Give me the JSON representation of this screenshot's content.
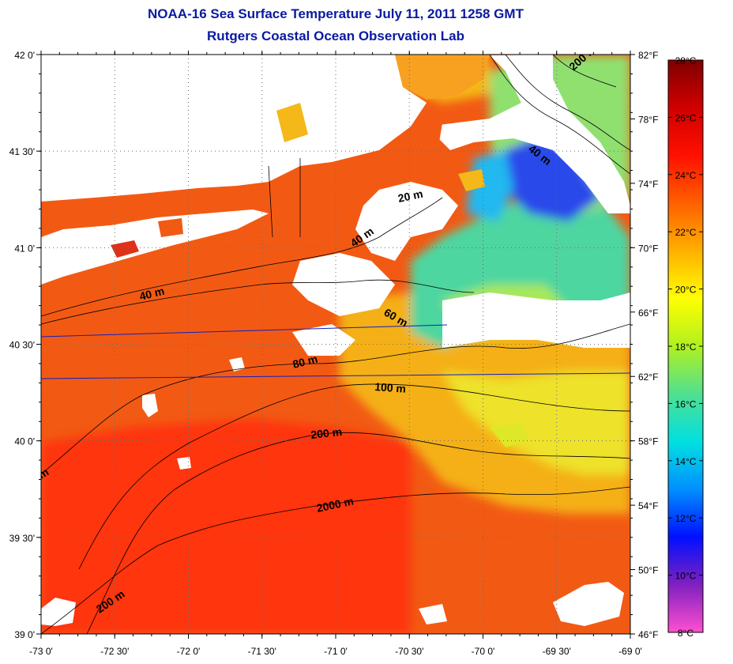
{
  "title": "NOAA-16 Sea Surface Temperature July 11, 2011 1258 GMT",
  "subtitle": "Rutgers Coastal Ocean Observation Lab",
  "map": {
    "lon_range": [
      -73.0,
      -69.0
    ],
    "lat_range": [
      39.0,
      42.0
    ],
    "grid": "dotted",
    "lon_ticks": [
      {
        "value": -73.0,
        "label": "-73 0'"
      },
      {
        "value": -72.5,
        "label": "-72 30'"
      },
      {
        "value": -72.0,
        "label": "-72 0'"
      },
      {
        "value": -71.5,
        "label": "-71 30'"
      },
      {
        "value": -71.0,
        "label": "-71 0'"
      },
      {
        "value": -70.5,
        "label": "-70 30'"
      },
      {
        "value": -70.0,
        "label": "-70 0'"
      },
      {
        "value": -69.5,
        "label": "-69 30'"
      },
      {
        "value": -69.0,
        "label": "-69 0'"
      }
    ],
    "lat_ticks": [
      {
        "value": 42.0,
        "label": "42 0'"
      },
      {
        "value": 41.5,
        "label": "41 30'"
      },
      {
        "value": 41.0,
        "label": "41 0'"
      },
      {
        "value": 40.5,
        "label": "40 30'"
      },
      {
        "value": 40.0,
        "label": "40 0'"
      },
      {
        "value": 39.5,
        "label": "39 30'"
      },
      {
        "value": 39.0,
        "label": "39 0'"
      }
    ],
    "f_ticks": [
      {
        "value": 82,
        "label": "82°F"
      },
      {
        "value": 78,
        "label": "78°F"
      },
      {
        "value": 74,
        "label": "74°F"
      },
      {
        "value": 70,
        "label": "70°F"
      },
      {
        "value": 66,
        "label": "66°F"
      },
      {
        "value": 62,
        "label": "62°F"
      },
      {
        "value": 58,
        "label": "58°F"
      },
      {
        "value": 54,
        "label": "54°F"
      },
      {
        "value": 50,
        "label": "50°F"
      },
      {
        "value": 46,
        "label": "46°F"
      }
    ],
    "depth_labels": [
      "20 m",
      "40 m",
      "40 m",
      "40 m",
      "60 m",
      "80 m",
      "100 m",
      "200 m",
      "200 m",
      "200 m",
      "2000 m",
      "m"
    ]
  },
  "colorbar": {
    "range_c": [
      8,
      28
    ],
    "ticks": [
      {
        "value": 28,
        "label": "28°C"
      },
      {
        "value": 26,
        "label": "26°C"
      },
      {
        "value": 24,
        "label": "24°C"
      },
      {
        "value": 22,
        "label": "22°C"
      },
      {
        "value": 20,
        "label": "20°C"
      },
      {
        "value": 18,
        "label": "18°C"
      },
      {
        "value": 16,
        "label": "16°C"
      },
      {
        "value": 14,
        "label": "14°C"
      },
      {
        "value": 12,
        "label": "12°C"
      },
      {
        "value": 10,
        "label": "10°C"
      },
      {
        "value": 8,
        "label": "8°C"
      }
    ],
    "colors": [
      "#ff50d0",
      "#8020c0",
      "#0010ff",
      "#0090ff",
      "#00e0e0",
      "#50e090",
      "#b0f020",
      "#ffff00",
      "#ffb000",
      "#ff6000",
      "#ff1000",
      "#d00000",
      "#800000"
    ]
  },
  "colors": {
    "title": "#0a1aa0",
    "warm_sea": "#f25a14",
    "warmer_sea": "#ff3010",
    "cool_sea": "#f0e020",
    "cold_sea": "#4ed6a0",
    "coldest_sea": "#2440e8",
    "land_cloud": "#ffffff"
  }
}
